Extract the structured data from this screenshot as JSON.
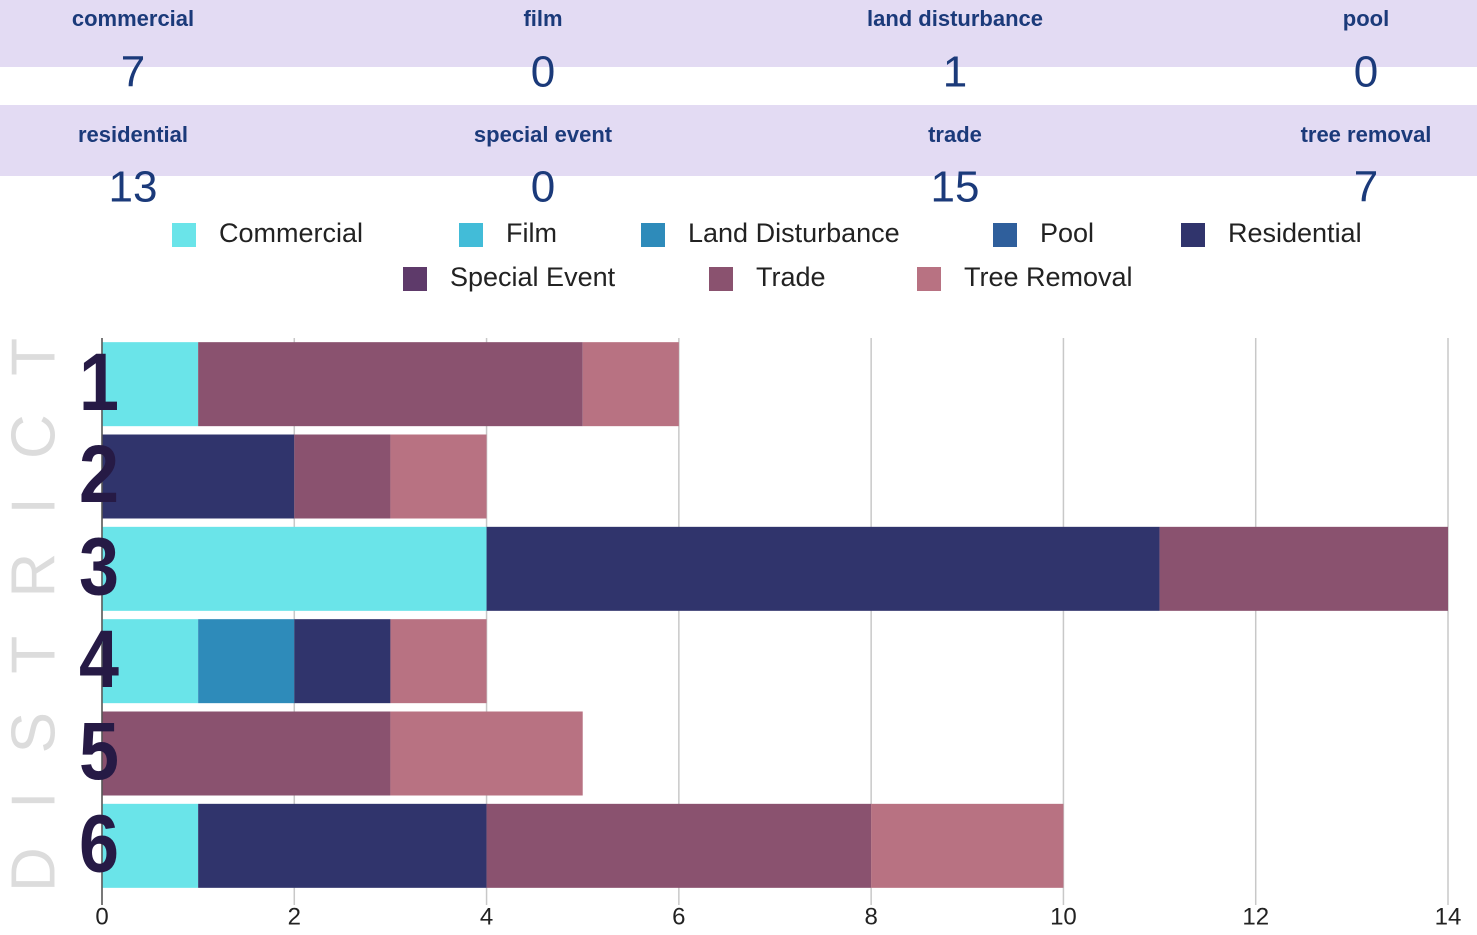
{
  "stats": [
    {
      "label": "commercial",
      "value": 7
    },
    {
      "label": "film",
      "value": 0
    },
    {
      "label": "land disturbance",
      "value": 1
    },
    {
      "label": "pool",
      "value": 0
    },
    {
      "label": "residential",
      "value": 13
    },
    {
      "label": "special event",
      "value": 0
    },
    {
      "label": "trade",
      "value": 15
    },
    {
      "label": "tree removal",
      "value": 7
    }
  ],
  "chart_data": {
    "type": "stacked_barh",
    "y_label": "DISTRICT",
    "categories": [
      "1",
      "2",
      "3",
      "4",
      "5",
      "6"
    ],
    "series": [
      {
        "name": "Commercial",
        "color": "#6ae4e9",
        "values": [
          1,
          0,
          4,
          1,
          0,
          1
        ]
      },
      {
        "name": "Film",
        "color": "#42bcd8",
        "values": [
          0,
          0,
          0,
          0,
          0,
          0
        ]
      },
      {
        "name": "Land Disturbance",
        "color": "#2e8bba",
        "values": [
          0,
          0,
          0,
          1,
          0,
          0
        ]
      },
      {
        "name": "Pool",
        "color": "#2f5f9c",
        "values": [
          0,
          0,
          0,
          0,
          0,
          0
        ]
      },
      {
        "name": "Residential",
        "color": "#30346c",
        "values": [
          0,
          2,
          7,
          1,
          0,
          3
        ]
      },
      {
        "name": "Special Event",
        "color": "#5e3a6a",
        "values": [
          0,
          0,
          0,
          0,
          0,
          0
        ]
      },
      {
        "name": "Trade",
        "color": "#8a526f",
        "values": [
          4,
          1,
          3,
          0,
          3,
          4
        ]
      },
      {
        "name": "Tree Removal",
        "color": "#b87282",
        "values": [
          1,
          1,
          0,
          1,
          2,
          2
        ]
      }
    ],
    "xlim": [
      0,
      14
    ],
    "xticks": [
      0,
      2,
      4,
      6,
      8,
      10,
      12,
      14
    ],
    "grid": true
  }
}
